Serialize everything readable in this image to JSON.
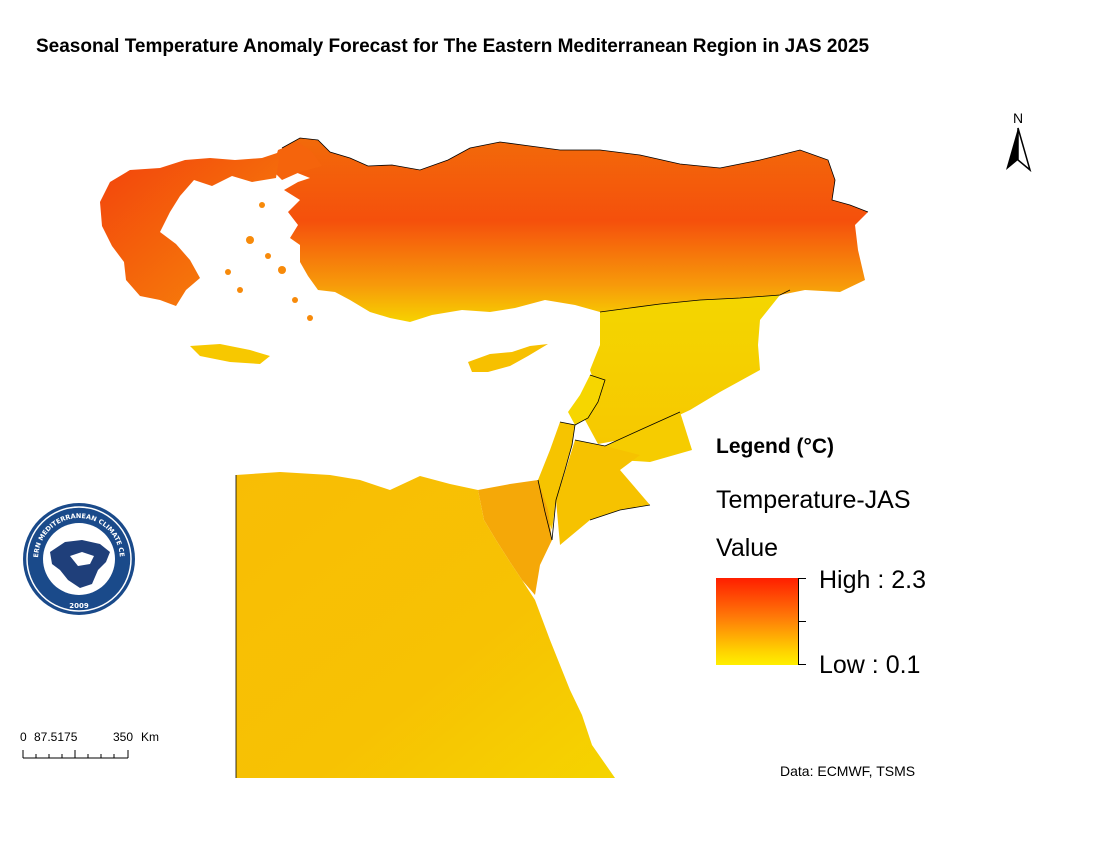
{
  "title": "Seasonal Temperature Anomaly Forecast for The Eastern Mediterranean Region in JAS 2025",
  "north_arrow": {
    "label": "N"
  },
  "legend": {
    "title": "Legend (°C)",
    "layer": "Temperature-JAS",
    "field": "Value",
    "high_label": "High : 2.3",
    "low_label": "Low : 0.1",
    "high_value": 2.3,
    "low_value": 0.1,
    "ramp_colors": [
      "#ff1e00",
      "#ff7a08",
      "#ffd400",
      "#ffef00"
    ]
  },
  "scale_bar": {
    "labels": [
      "0",
      "87.5175",
      "350",
      "Km"
    ]
  },
  "source": "Data: ECMWF, TSMS",
  "logo": {
    "text_top": "EASTERN MEDITERRANEAN CLIMATE CENTRE",
    "year": "2009",
    "colors": {
      "ring": "#1a4a8a",
      "land": "#1f3f7a",
      "sea": "#ffffff"
    }
  },
  "map_colors": {
    "hot": "#f44a0a",
    "warm": "#f98a0c",
    "mild": "#f7b405",
    "cool": "#f5d200",
    "border": "#000000"
  }
}
